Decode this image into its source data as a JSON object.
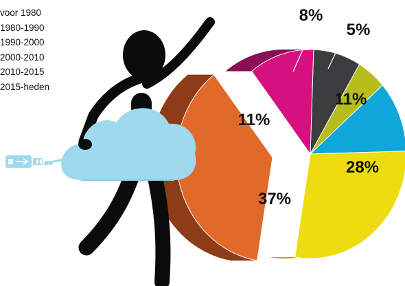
{
  "chart_data": {
    "type": "pie",
    "categories": [
      "voor 1980",
      "1980-1990",
      "1990-2000",
      "2000-2010",
      "2010-2015",
      "2015-heden"
    ],
    "values": [
      8,
      5,
      11,
      28,
      37,
      11
    ],
    "data_labels": [
      "8%",
      "5%",
      "11%",
      "28%",
      "37%",
      "11%"
    ],
    "colors": [
      "#3d3d3f",
      "#b6bd1c",
      "#0fa6d9",
      "#ecdc10",
      "#e1692a",
      "#d6117f"
    ],
    "side_colors": [
      "#141416",
      "#8b9212",
      "#0a7aa3",
      "#b3a70c",
      "#8c3d18",
      "#8a0f55"
    ],
    "legend": {
      "entries": [
        "voor 1980",
        "1980-1990",
        "1990-2000",
        "2000-2010",
        "2010-2015",
        "2015-heden"
      ],
      "placement": "top-left"
    },
    "start_angle_deg": 272,
    "exploded_slice": "2010-2015"
  },
  "illustration": {
    "figure": "stick-figure-icon",
    "cloud": "cloud-icon",
    "usb": "usb-plug-icon",
    "colors": {
      "figure": "#0b0b0b",
      "cloud": "#9fd9ee",
      "cloud_edge": "#86cbe4",
      "usb": "#9fd9ee"
    }
  }
}
